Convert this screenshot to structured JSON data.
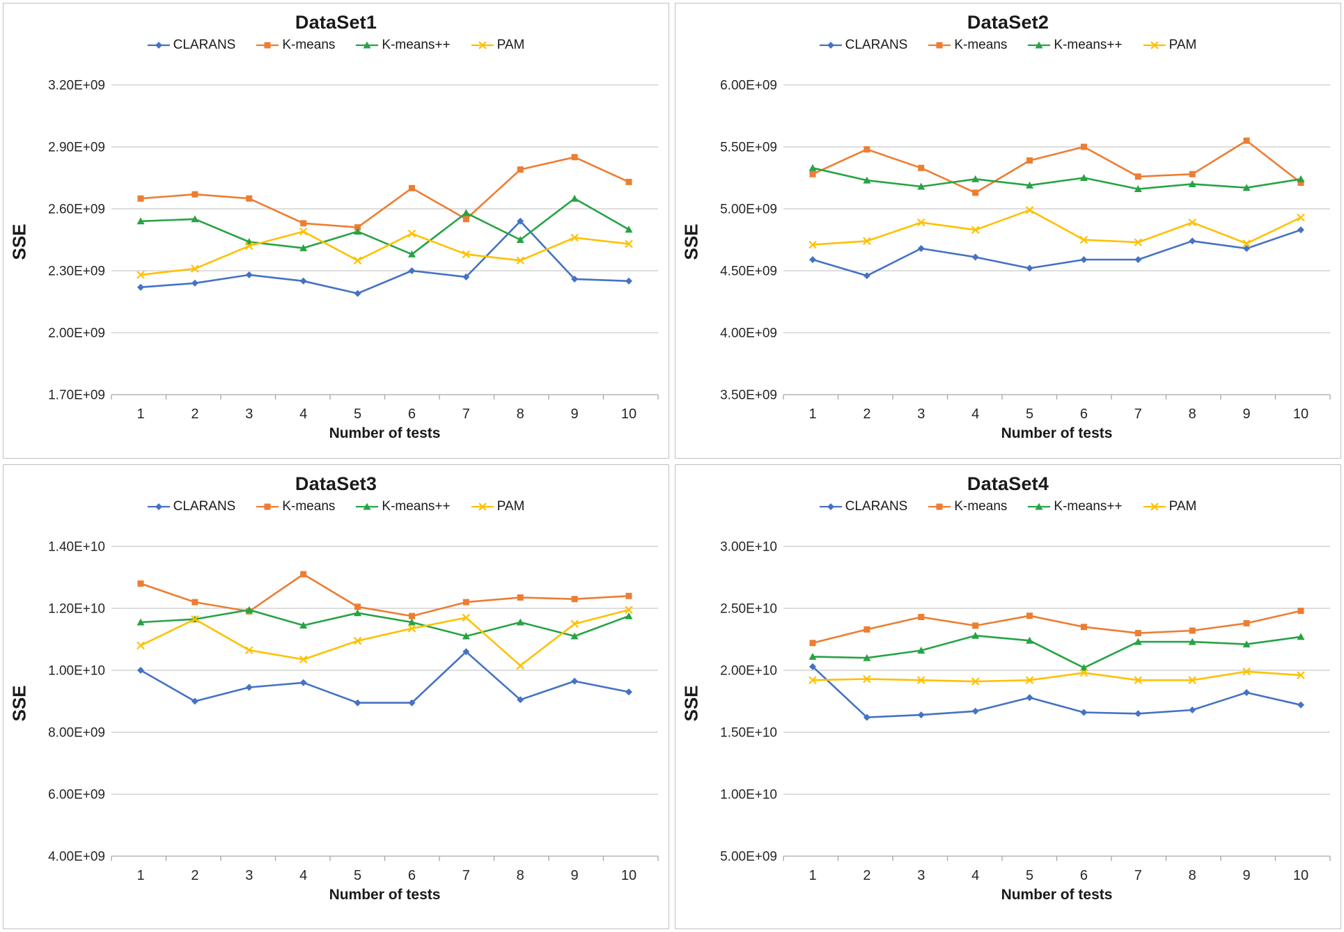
{
  "page": {
    "background": "#FFFFFF",
    "border_color": "#BFBFBF"
  },
  "grid_color": "#C9C9C9",
  "axis_color": "#A6A6A6",
  "legend": {
    "items": [
      "CLARANS",
      "K-means",
      "K-means++",
      "PAM"
    ]
  },
  "chart_data": [
    {
      "type": "line",
      "title": "DataSet1",
      "xlabel": "Number of tests",
      "ylabel": "SSE",
      "categories": [
        1,
        2,
        3,
        4,
        5,
        6,
        7,
        8,
        9,
        10
      ],
      "ytick_labels": [
        "3.20E+09",
        "2.90E+09",
        "2.60E+09",
        "2.30E+09",
        "2.00E+09",
        "1.70E+09"
      ],
      "ylim": [
        1700000000,
        3200000000
      ],
      "grid": "horizontal",
      "legend_position": "top",
      "series": [
        {
          "name": "CLARANS",
          "color": "#4472C4",
          "marker": "diamond",
          "values": [
            2220000000,
            2240000000,
            2280000000,
            2250000000,
            2190000000,
            2300000000,
            2270000000,
            2540000000,
            2260000000,
            2250000000
          ]
        },
        {
          "name": "K-means",
          "color": "#ED7D31",
          "marker": "square",
          "values": [
            2650000000,
            2670000000,
            2650000000,
            2530000000,
            2510000000,
            2700000000,
            2550000000,
            2790000000,
            2850000000,
            2730000000
          ]
        },
        {
          "name": "K-means++",
          "color": "#27A344",
          "marker": "triangle",
          "values": [
            2540000000,
            2550000000,
            2440000000,
            2410000000,
            2490000000,
            2380000000,
            2580000000,
            2450000000,
            2650000000,
            2500000000
          ]
        },
        {
          "name": "PAM",
          "color": "#FFC000",
          "marker": "x",
          "values": [
            2280000000,
            2310000000,
            2420000000,
            2490000000,
            2350000000,
            2480000000,
            2380000000,
            2350000000,
            2460000000,
            2430000000
          ]
        }
      ]
    },
    {
      "type": "line",
      "title": "DataSet2",
      "xlabel": "Number of tests",
      "ylabel": "SSE",
      "categories": [
        1,
        2,
        3,
        4,
        5,
        6,
        7,
        8,
        9,
        10
      ],
      "ytick_labels": [
        "6.00E+09",
        "5.50E+09",
        "5.00E+09",
        "4.50E+09",
        "4.00E+09",
        "3.50E+09"
      ],
      "ylim": [
        3500000000,
        6000000000
      ],
      "grid": "horizontal",
      "legend_position": "top",
      "series": [
        {
          "name": "CLARANS",
          "color": "#4472C4",
          "marker": "diamond",
          "values": [
            4590000000,
            4460000000,
            4680000000,
            4610000000,
            4520000000,
            4590000000,
            4590000000,
            4740000000,
            4680000000,
            4830000000
          ]
        },
        {
          "name": "K-means",
          "color": "#ED7D31",
          "marker": "square",
          "values": [
            5280000000,
            5480000000,
            5330000000,
            5130000000,
            5390000000,
            5500000000,
            5260000000,
            5280000000,
            5550000000,
            5210000000
          ]
        },
        {
          "name": "K-means++",
          "color": "#27A344",
          "marker": "triangle",
          "values": [
            5330000000,
            5230000000,
            5180000000,
            5240000000,
            5190000000,
            5250000000,
            5160000000,
            5200000000,
            5170000000,
            5240000000
          ]
        },
        {
          "name": "PAM",
          "color": "#FFC000",
          "marker": "x",
          "values": [
            4710000000,
            4740000000,
            4890000000,
            4830000000,
            4990000000,
            4750000000,
            4730000000,
            4890000000,
            4720000000,
            4930000000
          ]
        }
      ]
    },
    {
      "type": "line",
      "title": "DataSet3",
      "xlabel": "Number of tests",
      "ylabel": "SSE",
      "categories": [
        1,
        2,
        3,
        4,
        5,
        6,
        7,
        8,
        9,
        10
      ],
      "ytick_labels": [
        "1.40E+10",
        "1.20E+10",
        "1.00E+10",
        "8.00E+09",
        "6.00E+09",
        "4.00E+09"
      ],
      "ylim": [
        4000000000,
        14000000000
      ],
      "grid": "horizontal",
      "legend_position": "top",
      "series": [
        {
          "name": "CLARANS",
          "color": "#4472C4",
          "marker": "diamond",
          "values": [
            10000000000,
            9000000000,
            9450000000,
            9600000000,
            8950000000,
            8950000000,
            10600000000,
            9050000000,
            9650000000,
            9300000000
          ]
        },
        {
          "name": "K-means",
          "color": "#ED7D31",
          "marker": "square",
          "values": [
            12800000000,
            12200000000,
            11900000000,
            13100000000,
            12050000000,
            11750000000,
            12200000000,
            12350000000,
            12300000000,
            12400000000
          ]
        },
        {
          "name": "K-means++",
          "color": "#27A344",
          "marker": "triangle",
          "values": [
            11550000000,
            11650000000,
            11950000000,
            11450000000,
            11850000000,
            11550000000,
            11100000000,
            11550000000,
            11100000000,
            11750000000
          ]
        },
        {
          "name": "PAM",
          "color": "#FFC000",
          "marker": "x",
          "values": [
            10800000000,
            11650000000,
            10650000000,
            10350000000,
            10950000000,
            11350000000,
            11700000000,
            10150000000,
            11500000000,
            11950000000
          ]
        }
      ]
    },
    {
      "type": "line",
      "title": "DataSet4",
      "xlabel": "Number of tests",
      "ylabel": "SSE",
      "categories": [
        1,
        2,
        3,
        4,
        5,
        6,
        7,
        8,
        9,
        10
      ],
      "ytick_labels": [
        "3.00E+10",
        "2.50E+10",
        "2.00E+10",
        "1.50E+10",
        "1.00E+10",
        "5.00E+09"
      ],
      "ylim": [
        5000000000,
        30000000000
      ],
      "grid": "horizontal",
      "legend_position": "top",
      "series": [
        {
          "name": "CLARANS",
          "color": "#4472C4",
          "marker": "diamond",
          "values": [
            20300000000,
            16200000000,
            16400000000,
            16700000000,
            17800000000,
            16600000000,
            16500000000,
            16800000000,
            18200000000,
            17200000000
          ]
        },
        {
          "name": "K-means",
          "color": "#ED7D31",
          "marker": "square",
          "values": [
            22200000000,
            23300000000,
            24300000000,
            23600000000,
            24400000000,
            23500000000,
            23000000000,
            23200000000,
            23800000000,
            24800000000
          ]
        },
        {
          "name": "K-means++",
          "color": "#27A344",
          "marker": "triangle",
          "values": [
            21100000000,
            21000000000,
            21600000000,
            22800000000,
            22400000000,
            20200000000,
            22300000000,
            22300000000,
            22100000000,
            22700000000
          ]
        },
        {
          "name": "PAM",
          "color": "#FFC000",
          "marker": "x",
          "values": [
            19200000000,
            19300000000,
            19200000000,
            19100000000,
            19200000000,
            19800000000,
            19200000000,
            19200000000,
            19900000000,
            19600000000
          ]
        }
      ]
    }
  ]
}
